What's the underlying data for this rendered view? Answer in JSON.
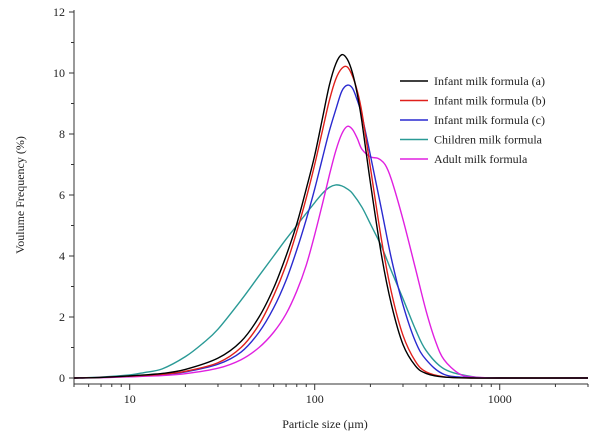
{
  "chart_data": {
    "type": "line",
    "title": "",
    "xlabel": "Particle size (µm)",
    "ylabel": "Voulume Frequency (%)",
    "x_scale": "log",
    "xlim": [
      5,
      3000
    ],
    "ylim": [
      0,
      12
    ],
    "x_ticks": [
      10,
      100,
      1000
    ],
    "x_tick_labels": [
      "10",
      "100",
      "1000"
    ],
    "y_ticks": [
      0,
      2,
      4,
      6,
      8,
      10,
      12
    ],
    "y_tick_labels": [
      "0",
      "2",
      "4",
      "6",
      "8",
      "10",
      "12"
    ],
    "grid": false,
    "legend_position": "top-right",
    "series": [
      {
        "name": "Infant milk formula (a)",
        "color": "#000000",
        "x": [
          5,
          7,
          10,
          15,
          20,
          30,
          40,
          50,
          60,
          70,
          80,
          90,
          100,
          110,
          120,
          130,
          140,
          150,
          160,
          170,
          180,
          200,
          230,
          260,
          300,
          350,
          400,
          500,
          700,
          1000,
          3000
        ],
        "y": [
          0,
          0.02,
          0.07,
          0.15,
          0.28,
          0.65,
          1.2,
          2.0,
          2.95,
          4.0,
          5.05,
          6.2,
          7.3,
          8.5,
          9.6,
          10.3,
          10.6,
          10.45,
          10.0,
          9.3,
          8.4,
          6.4,
          4.0,
          2.4,
          1.1,
          0.4,
          0.15,
          0.03,
          0,
          0,
          0
        ]
      },
      {
        "name": "Infant milk formula (b)",
        "color": "#e0201b",
        "x": [
          5,
          7,
          10,
          15,
          20,
          30,
          40,
          50,
          60,
          70,
          80,
          90,
          100,
          110,
          120,
          130,
          140,
          150,
          160,
          170,
          180,
          200,
          230,
          260,
          300,
          350,
          400,
          500,
          700,
          1000,
          3000
        ],
        "y": [
          0,
          0.02,
          0.06,
          0.12,
          0.22,
          0.5,
          1.0,
          1.75,
          2.7,
          3.7,
          4.8,
          5.9,
          7.0,
          8.1,
          9.1,
          9.8,
          10.15,
          10.2,
          9.9,
          9.4,
          8.7,
          6.9,
          4.5,
          2.8,
          1.4,
          0.55,
          0.2,
          0.04,
          0,
          0,
          0
        ]
      },
      {
        "name": "Infant milk formula (c)",
        "color": "#2a2ad0",
        "x": [
          5,
          7,
          10,
          15,
          20,
          30,
          40,
          50,
          60,
          70,
          80,
          90,
          100,
          110,
          120,
          130,
          140,
          150,
          160,
          170,
          180,
          200,
          230,
          260,
          300,
          350,
          400,
          500,
          700,
          1000,
          3000
        ],
        "y": [
          0,
          0.02,
          0.06,
          0.12,
          0.2,
          0.45,
          0.85,
          1.5,
          2.3,
          3.2,
          4.2,
          5.2,
          6.2,
          7.2,
          8.1,
          8.8,
          9.4,
          9.6,
          9.5,
          9.1,
          8.6,
          7.3,
          5.5,
          3.9,
          2.4,
          1.2,
          0.6,
          0.12,
          0.01,
          0,
          0
        ]
      },
      {
        "name": "Children milk formula",
        "color": "#2a9a96",
        "x": [
          5,
          7,
          10,
          12,
          15,
          20,
          25,
          30,
          40,
          50,
          60,
          70,
          80,
          90,
          100,
          110,
          120,
          130,
          140,
          150,
          160,
          180,
          200,
          230,
          260,
          300,
          350,
          400,
          500,
          700,
          1000,
          3000
        ],
        "y": [
          0,
          0.03,
          0.1,
          0.18,
          0.3,
          0.7,
          1.15,
          1.6,
          2.55,
          3.35,
          4.0,
          4.55,
          5.0,
          5.4,
          5.75,
          6.05,
          6.25,
          6.33,
          6.3,
          6.2,
          6.05,
          5.6,
          5.05,
          4.3,
          3.5,
          2.6,
          1.6,
          0.9,
          0.3,
          0.05,
          0,
          0
        ]
      },
      {
        "name": "Adult milk formula",
        "color": "#e020e0",
        "x": [
          5,
          7,
          10,
          15,
          20,
          30,
          40,
          50,
          60,
          70,
          80,
          90,
          100,
          110,
          120,
          130,
          140,
          150,
          160,
          170,
          180,
          200,
          220,
          240,
          260,
          300,
          350,
          400,
          450,
          500,
          600,
          700,
          1000,
          3000
        ],
        "y": [
          0,
          0.01,
          0.04,
          0.08,
          0.14,
          0.32,
          0.6,
          1.0,
          1.5,
          2.1,
          2.85,
          3.7,
          4.7,
          5.7,
          6.65,
          7.45,
          8.0,
          8.25,
          8.15,
          7.85,
          7.5,
          7.25,
          7.2,
          7.0,
          6.5,
          5.2,
          3.6,
          2.2,
          1.2,
          0.6,
          0.15,
          0.04,
          0,
          0
        ]
      }
    ]
  }
}
